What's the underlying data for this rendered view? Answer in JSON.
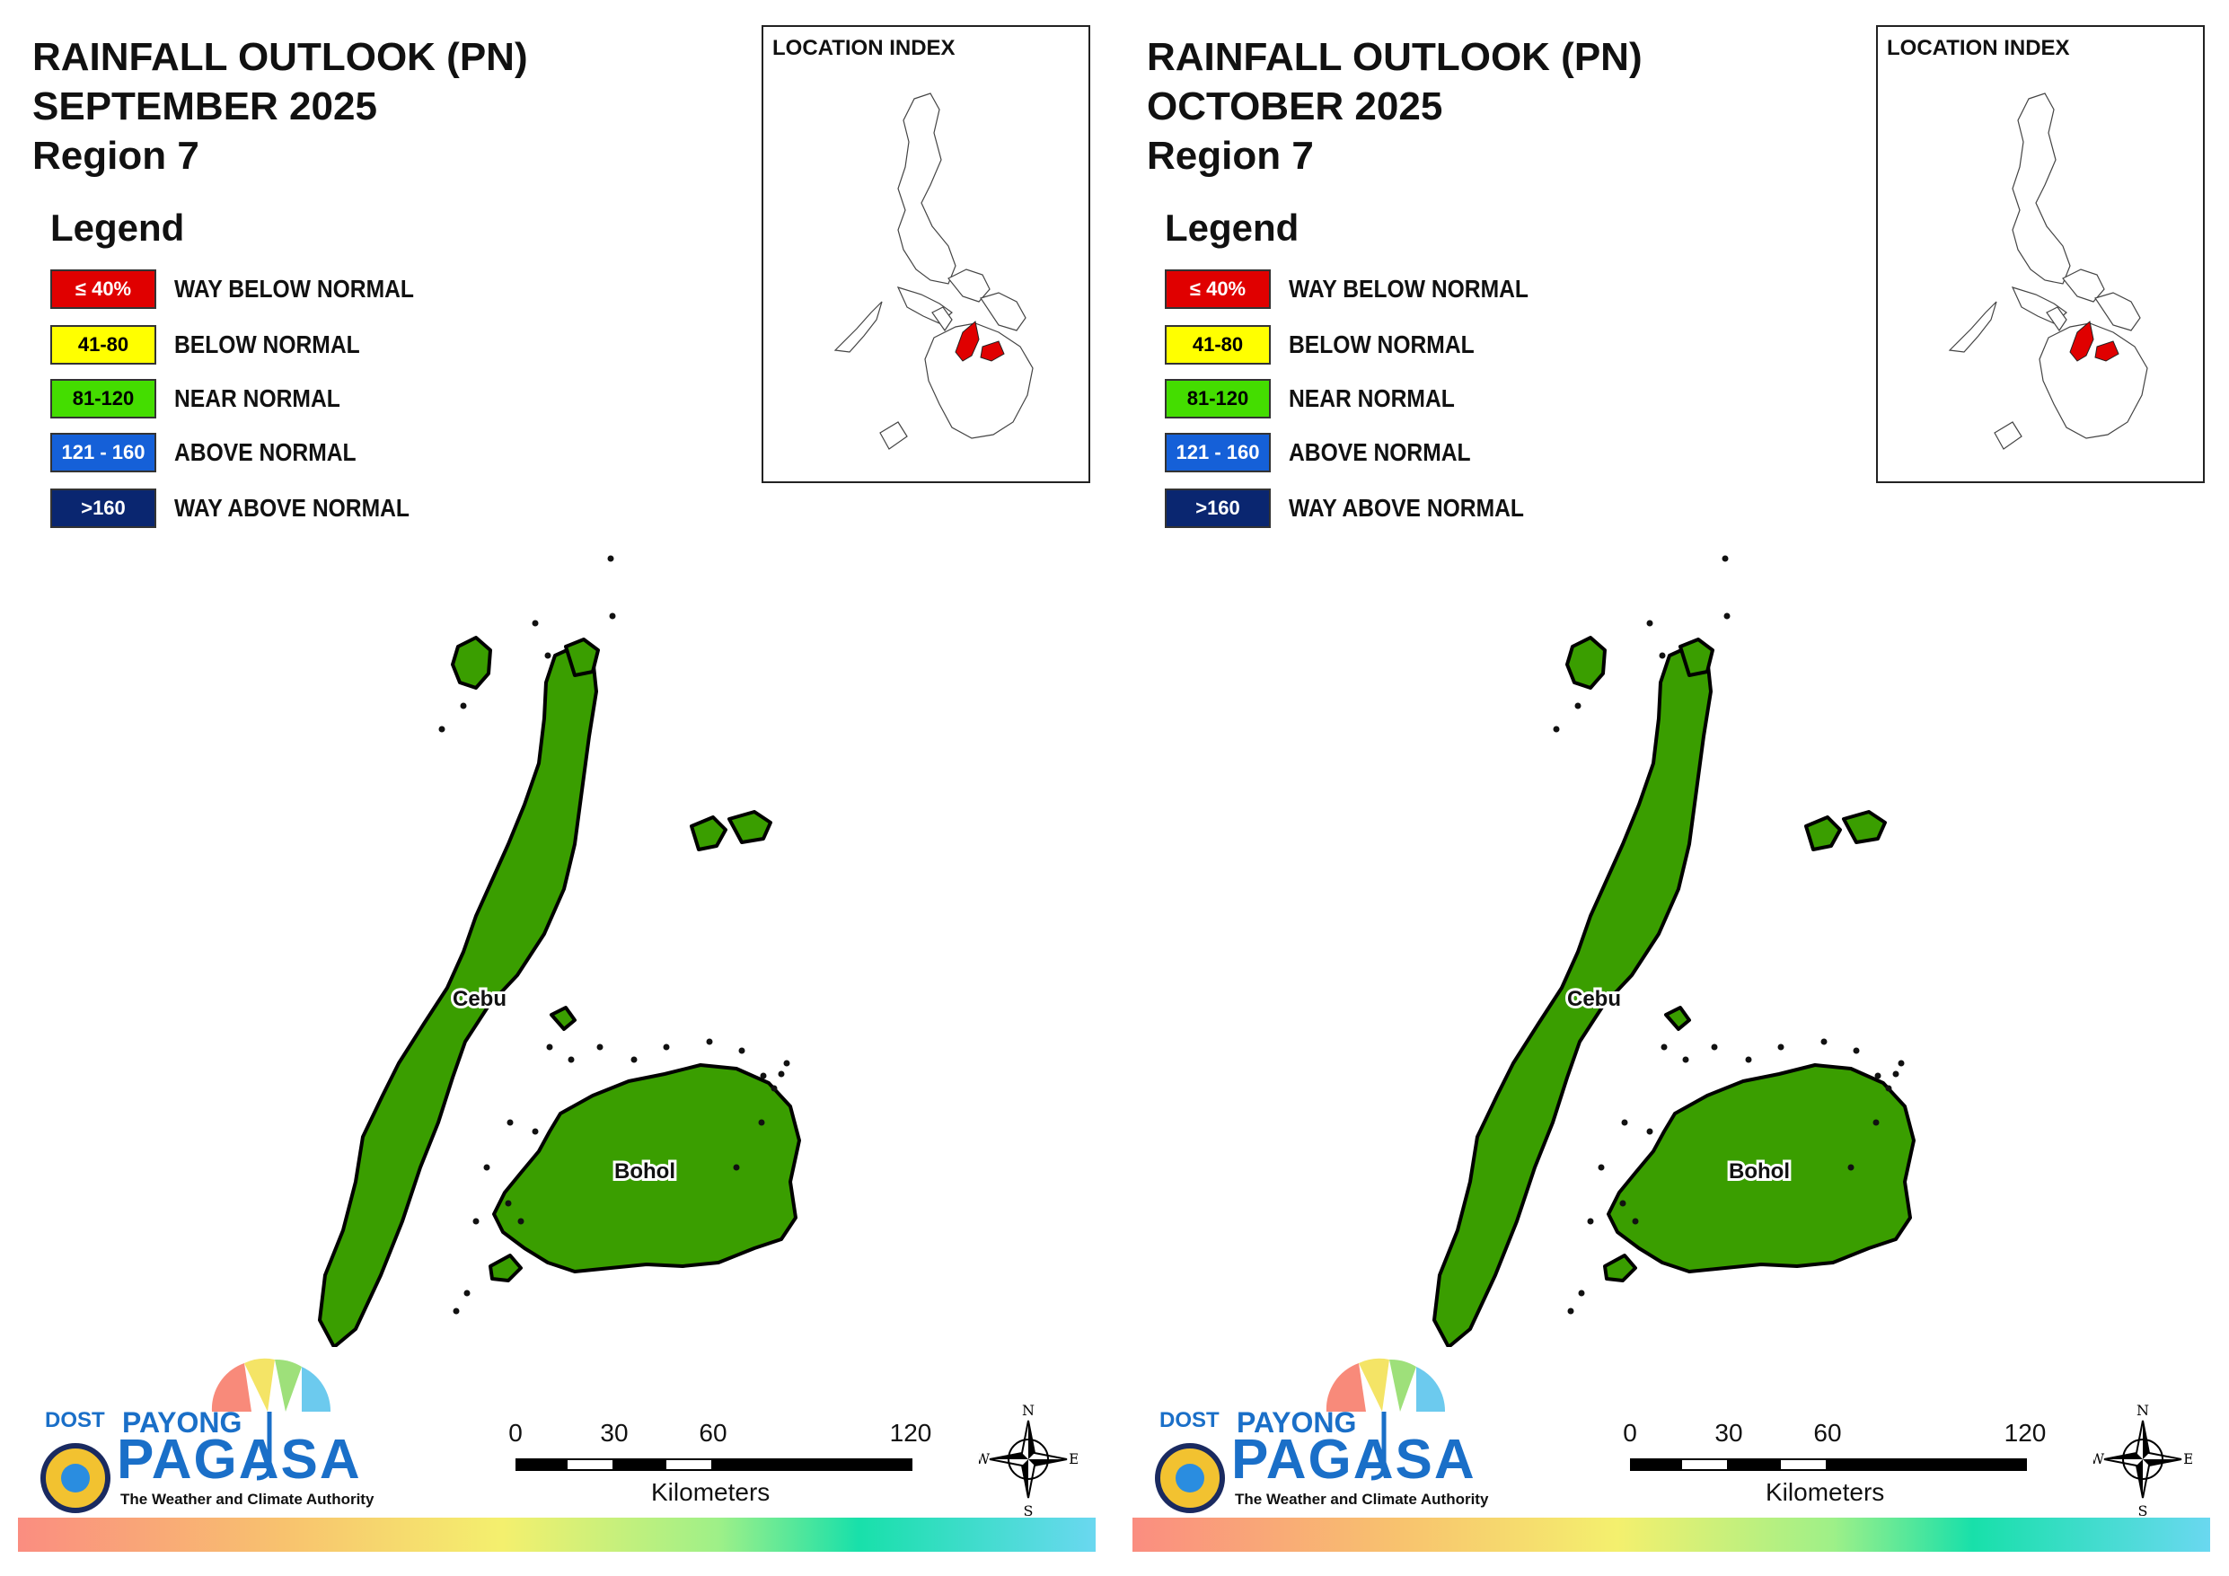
{
  "panels": [
    {
      "title": "RAINFALL OUTLOOK (PN)",
      "period": "SEPTEMBER 2025",
      "region": "Region 7"
    },
    {
      "title": "RAINFALL OUTLOOK (PN)",
      "period": "OCTOBER 2025",
      "region": "Region 7"
    }
  ],
  "legend": {
    "title": "Legend",
    "items": [
      {
        "range": "≤ 40%",
        "label": "WAY BELOW NORMAL",
        "color": "#e00000",
        "text_color": "#ffffff"
      },
      {
        "range": "41-80",
        "label": "BELOW NORMAL",
        "color": "#ffff00",
        "text_color": "#000000"
      },
      {
        "range": "81-120",
        "label": "NEAR NORMAL",
        "color": "#44dd00",
        "text_color": "#000000"
      },
      {
        "range": "121 - 160",
        "label": "ABOVE NORMAL",
        "color": "#1560d8",
        "text_color": "#ffffff"
      },
      {
        "range": ">160",
        "label": "WAY ABOVE NORMAL",
        "color": "#0a2670",
        "text_color": "#ffffff"
      }
    ]
  },
  "inset": {
    "label": "LOCATION INDEX",
    "highlight_color": "#e00000"
  },
  "map": {
    "fill_color": "#3a9e00",
    "places": [
      "Cebu",
      "Bohol"
    ]
  },
  "scale_bar": {
    "ticks": [
      "0",
      "30",
      "60",
      "120"
    ],
    "unit": "Kilometers"
  },
  "compass": {
    "n": "N",
    "s": "S",
    "e": "E",
    "w": "W"
  },
  "logo": {
    "dost": "DOST",
    "payong": "PAYONG",
    "pagasa": "PAGASA",
    "tagline": "The Weather and Climate Authority"
  }
}
